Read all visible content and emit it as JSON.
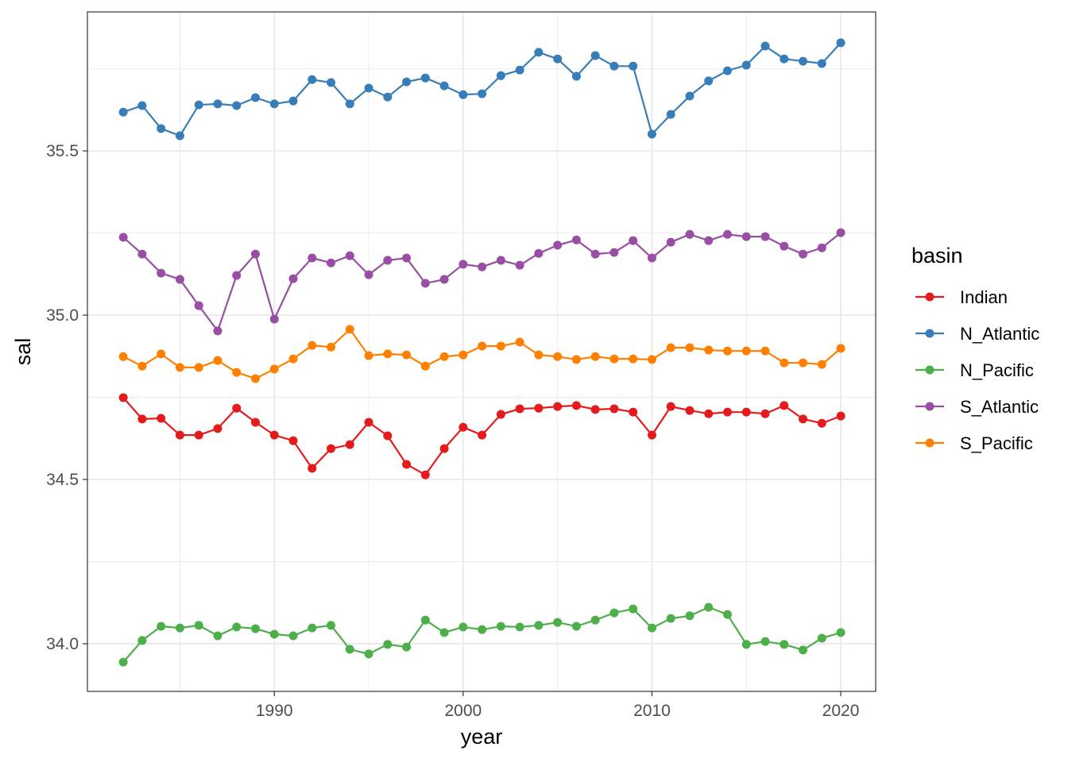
{
  "chart_data": {
    "type": "line",
    "title": "",
    "xlabel": "year",
    "ylabel": "sal",
    "xlim": [
      1980.1,
      2021.85
    ],
    "ylim": [
      33.855,
      35.923
    ],
    "x_ticks": [
      1990,
      2000,
      2010,
      2020
    ],
    "x_tick_labels": [
      "1990",
      "2000",
      "2010",
      "2020"
    ],
    "x_minor": [
      1985,
      1995,
      2005,
      2015
    ],
    "y_ticks": [
      34.0,
      34.5,
      35.0,
      35.5
    ],
    "y_tick_labels": [
      "34.0",
      "34.5",
      "35.0",
      "35.5"
    ],
    "y_minor": [
      34.25,
      34.75,
      35.25,
      35.75
    ],
    "grid": true,
    "legend_title": "basin",
    "legend_position": "right",
    "x": [
      1982,
      1983,
      1984,
      1985,
      1986,
      1987,
      1988,
      1989,
      1990,
      1991,
      1992,
      1993,
      1994,
      1995,
      1996,
      1997,
      1998,
      1999,
      2000,
      2001,
      2002,
      2003,
      2004,
      2005,
      2006,
      2007,
      2008,
      2009,
      2010,
      2011,
      2012,
      2013,
      2014,
      2015,
      2016,
      2017,
      2018,
      2019,
      2020
    ],
    "series": [
      {
        "name": "Indian",
        "color": "#e41a1c",
        "values": [
          34.749,
          34.684,
          34.686,
          34.635,
          34.635,
          34.655,
          34.717,
          34.674,
          34.635,
          34.618,
          34.534,
          34.594,
          34.606,
          34.674,
          34.633,
          34.546,
          34.514,
          34.594,
          34.659,
          34.635,
          34.698,
          34.715,
          34.717,
          34.722,
          34.725,
          34.713,
          34.715,
          34.705,
          34.635,
          34.722,
          34.71,
          34.7,
          34.705,
          34.705,
          34.7,
          34.725,
          34.684,
          34.671,
          34.693
        ]
      },
      {
        "name": "N_Atlantic",
        "color": "#377eb8",
        "values": [
          35.618,
          35.638,
          35.568,
          35.546,
          35.64,
          35.643,
          35.638,
          35.662,
          35.643,
          35.652,
          35.717,
          35.708,
          35.643,
          35.691,
          35.664,
          35.71,
          35.722,
          35.698,
          35.671,
          35.674,
          35.729,
          35.746,
          35.8,
          35.78,
          35.727,
          35.79,
          35.758,
          35.758,
          35.551,
          35.611,
          35.667,
          35.713,
          35.744,
          35.761,
          35.819,
          35.78,
          35.773,
          35.766,
          35.829
        ]
      },
      {
        "name": "N_Pacific",
        "color": "#4daf4a",
        "values": [
          33.944,
          34.01,
          34.053,
          34.048,
          34.056,
          34.024,
          34.051,
          34.046,
          34.029,
          34.024,
          34.048,
          34.056,
          33.983,
          33.969,
          33.998,
          33.99,
          34.072,
          34.034,
          34.051,
          34.043,
          34.053,
          34.051,
          34.056,
          34.065,
          34.053,
          34.072,
          34.094,
          34.106,
          34.048,
          34.077,
          34.085,
          34.111,
          34.089,
          33.998,
          34.007,
          33.998,
          33.981,
          34.017,
          34.034
        ]
      },
      {
        "name": "S_Atlantic",
        "color": "#984ea3",
        "values": [
          35.237,
          35.186,
          35.128,
          35.109,
          35.029,
          34.952,
          35.121,
          35.186,
          34.988,
          35.111,
          35.174,
          35.159,
          35.181,
          35.123,
          35.167,
          35.174,
          35.097,
          35.109,
          35.155,
          35.147,
          35.167,
          35.152,
          35.188,
          35.213,
          35.229,
          35.186,
          35.191,
          35.227,
          35.174,
          35.222,
          35.246,
          35.227,
          35.246,
          35.239,
          35.239,
          35.21,
          35.186,
          35.205,
          35.251
        ]
      },
      {
        "name": "S_Pacific",
        "color": "#ff7f00",
        "values": [
          34.874,
          34.845,
          34.882,
          34.841,
          34.841,
          34.862,
          34.826,
          34.807,
          34.836,
          34.867,
          34.908,
          34.903,
          34.957,
          34.877,
          34.882,
          34.879,
          34.845,
          34.874,
          34.879,
          34.906,
          34.906,
          34.918,
          34.879,
          34.874,
          34.865,
          34.874,
          34.867,
          34.867,
          34.865,
          34.901,
          34.901,
          34.894,
          34.891,
          34.891,
          34.891,
          34.855,
          34.855,
          34.85,
          34.899
        ]
      }
    ]
  }
}
